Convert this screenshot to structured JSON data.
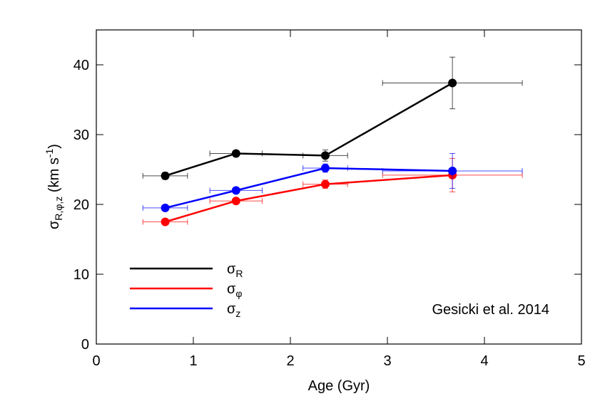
{
  "chart_data": {
    "type": "errorbar-line",
    "x_label": "Age (Gyr)",
    "y_label": [
      "σ",
      "R,φ,z",
      " (km s",
      "-1",
      ")"
    ],
    "annotation": "Gesicki et al. 2014",
    "xlim": [
      0,
      5
    ],
    "xticks": [
      0,
      1,
      2,
      3,
      4,
      5
    ],
    "ylim": [
      0,
      45
    ],
    "yticks": [
      0,
      10,
      20,
      30,
      40
    ],
    "legend": "lower-left",
    "series": [
      {
        "name": "σ",
        "subscript": "R",
        "color": "#000000",
        "x": [
          0.71,
          1.44,
          2.36,
          3.67
        ],
        "values": [
          24.1,
          27.3,
          27.0,
          37.4
        ],
        "xerr": [
          0.23,
          0.27,
          0.23,
          0.72
        ],
        "yerr": [
          0.5,
          0.3,
          0.8,
          3.7
        ]
      },
      {
        "name": "σ",
        "subscript": "φ",
        "color": "#ff0000",
        "x": [
          0.71,
          1.44,
          2.36,
          3.67
        ],
        "values": [
          17.5,
          20.5,
          22.9,
          24.2
        ],
        "xerr": [
          0.23,
          0.27,
          0.23,
          0.72
        ],
        "yerr": [
          0.3,
          0.2,
          0.6,
          2.4
        ]
      },
      {
        "name": "σ",
        "subscript": "z",
        "color": "#0000ff",
        "x": [
          0.71,
          1.44,
          2.36,
          3.67
        ],
        "values": [
          19.5,
          22.0,
          25.2,
          24.8
        ],
        "xerr": [
          0.23,
          0.27,
          0.23,
          0.72
        ],
        "yerr": [
          0.4,
          0.3,
          0.6,
          2.5
        ]
      }
    ]
  }
}
